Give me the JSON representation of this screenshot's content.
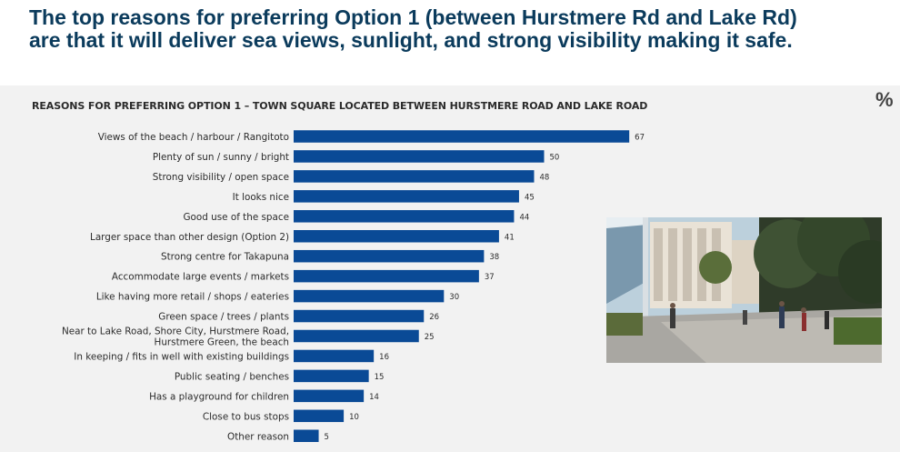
{
  "headline": "The top reasons for preferring Option 1 (between Hurstmere Rd and Lake Rd) are that it will deliver sea views, sunlight, and strong visibility making it safe.",
  "colors": {
    "bar": "#0a4a96",
    "headline": "#0b3b5c",
    "panel": "#f2f2f2"
  },
  "chart_data": {
    "type": "bar",
    "orientation": "horizontal",
    "title": "REASONS FOR PREFERRING OPTION 1 – TOWN SQUARE LOCATED BETWEEN HURSTMERE ROAD AND LAKE ROAD",
    "unit_label": "%",
    "categories": [
      "Views of the beach / harbour / Rangitoto",
      "Plenty of sun / sunny / bright",
      "Strong visibility / open space",
      "It looks nice",
      "Good use of the space",
      "Larger space than other design (Option 2)",
      "Strong centre for Takapuna",
      "Accommodate large events / markets",
      "Like having more retail / shops / eateries",
      "Green space / trees / plants",
      "Near to Lake Road, Shore City, Hurstmere Road, Hurstmere Green, the beach",
      "In keeping / fits in well with existing buildings",
      "Public seating / benches",
      "Has a playground for children",
      "Close to bus stops",
      "Other reason"
    ],
    "values": [
      67,
      50,
      48,
      45,
      44,
      41,
      38,
      37,
      30,
      26,
      25,
      16,
      15,
      14,
      10,
      5
    ],
    "xlim": [
      0,
      100
    ],
    "grid": false,
    "legend": "none"
  },
  "image": {
    "description_icon": "town-square-rendering"
  }
}
